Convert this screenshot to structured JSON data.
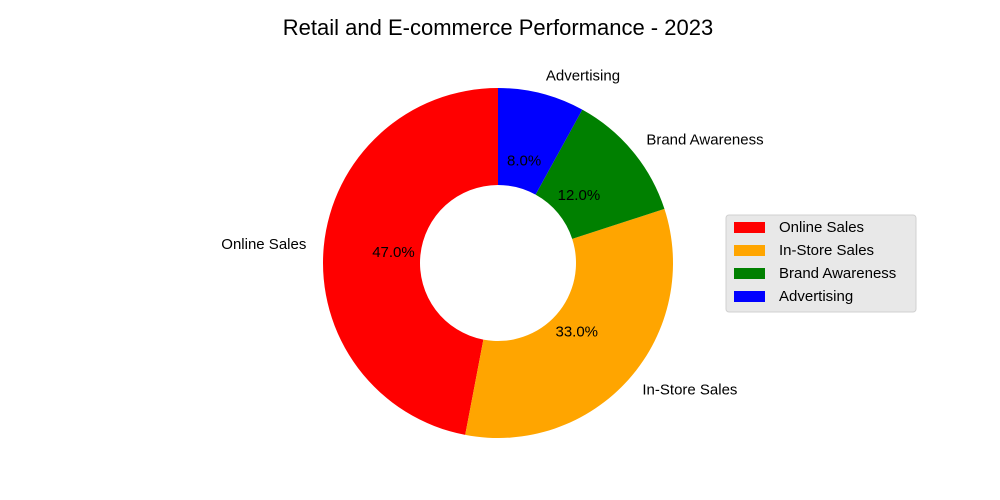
{
  "chart_data": {
    "type": "pie",
    "donut": true,
    "title": "Retail and E-commerce Performance - 2023",
    "labels": [
      "Online Sales",
      "In-Store Sales",
      "Brand Awareness",
      "Advertising"
    ],
    "values": [
      47.0,
      33.0,
      12.0,
      8.0
    ],
    "percent_labels": [
      "47.0%",
      "33.0%",
      "12.0%",
      "8.0%"
    ],
    "colors": [
      "#ff0000",
      "#ffa500",
      "#008000",
      "#0000ff"
    ],
    "start_angle_deg": 90,
    "direction": "counterclockwise",
    "legend": {
      "position": "right",
      "entries": [
        "Online Sales",
        "In-Store Sales",
        "Brand Awareness",
        "Advertising"
      ]
    }
  }
}
